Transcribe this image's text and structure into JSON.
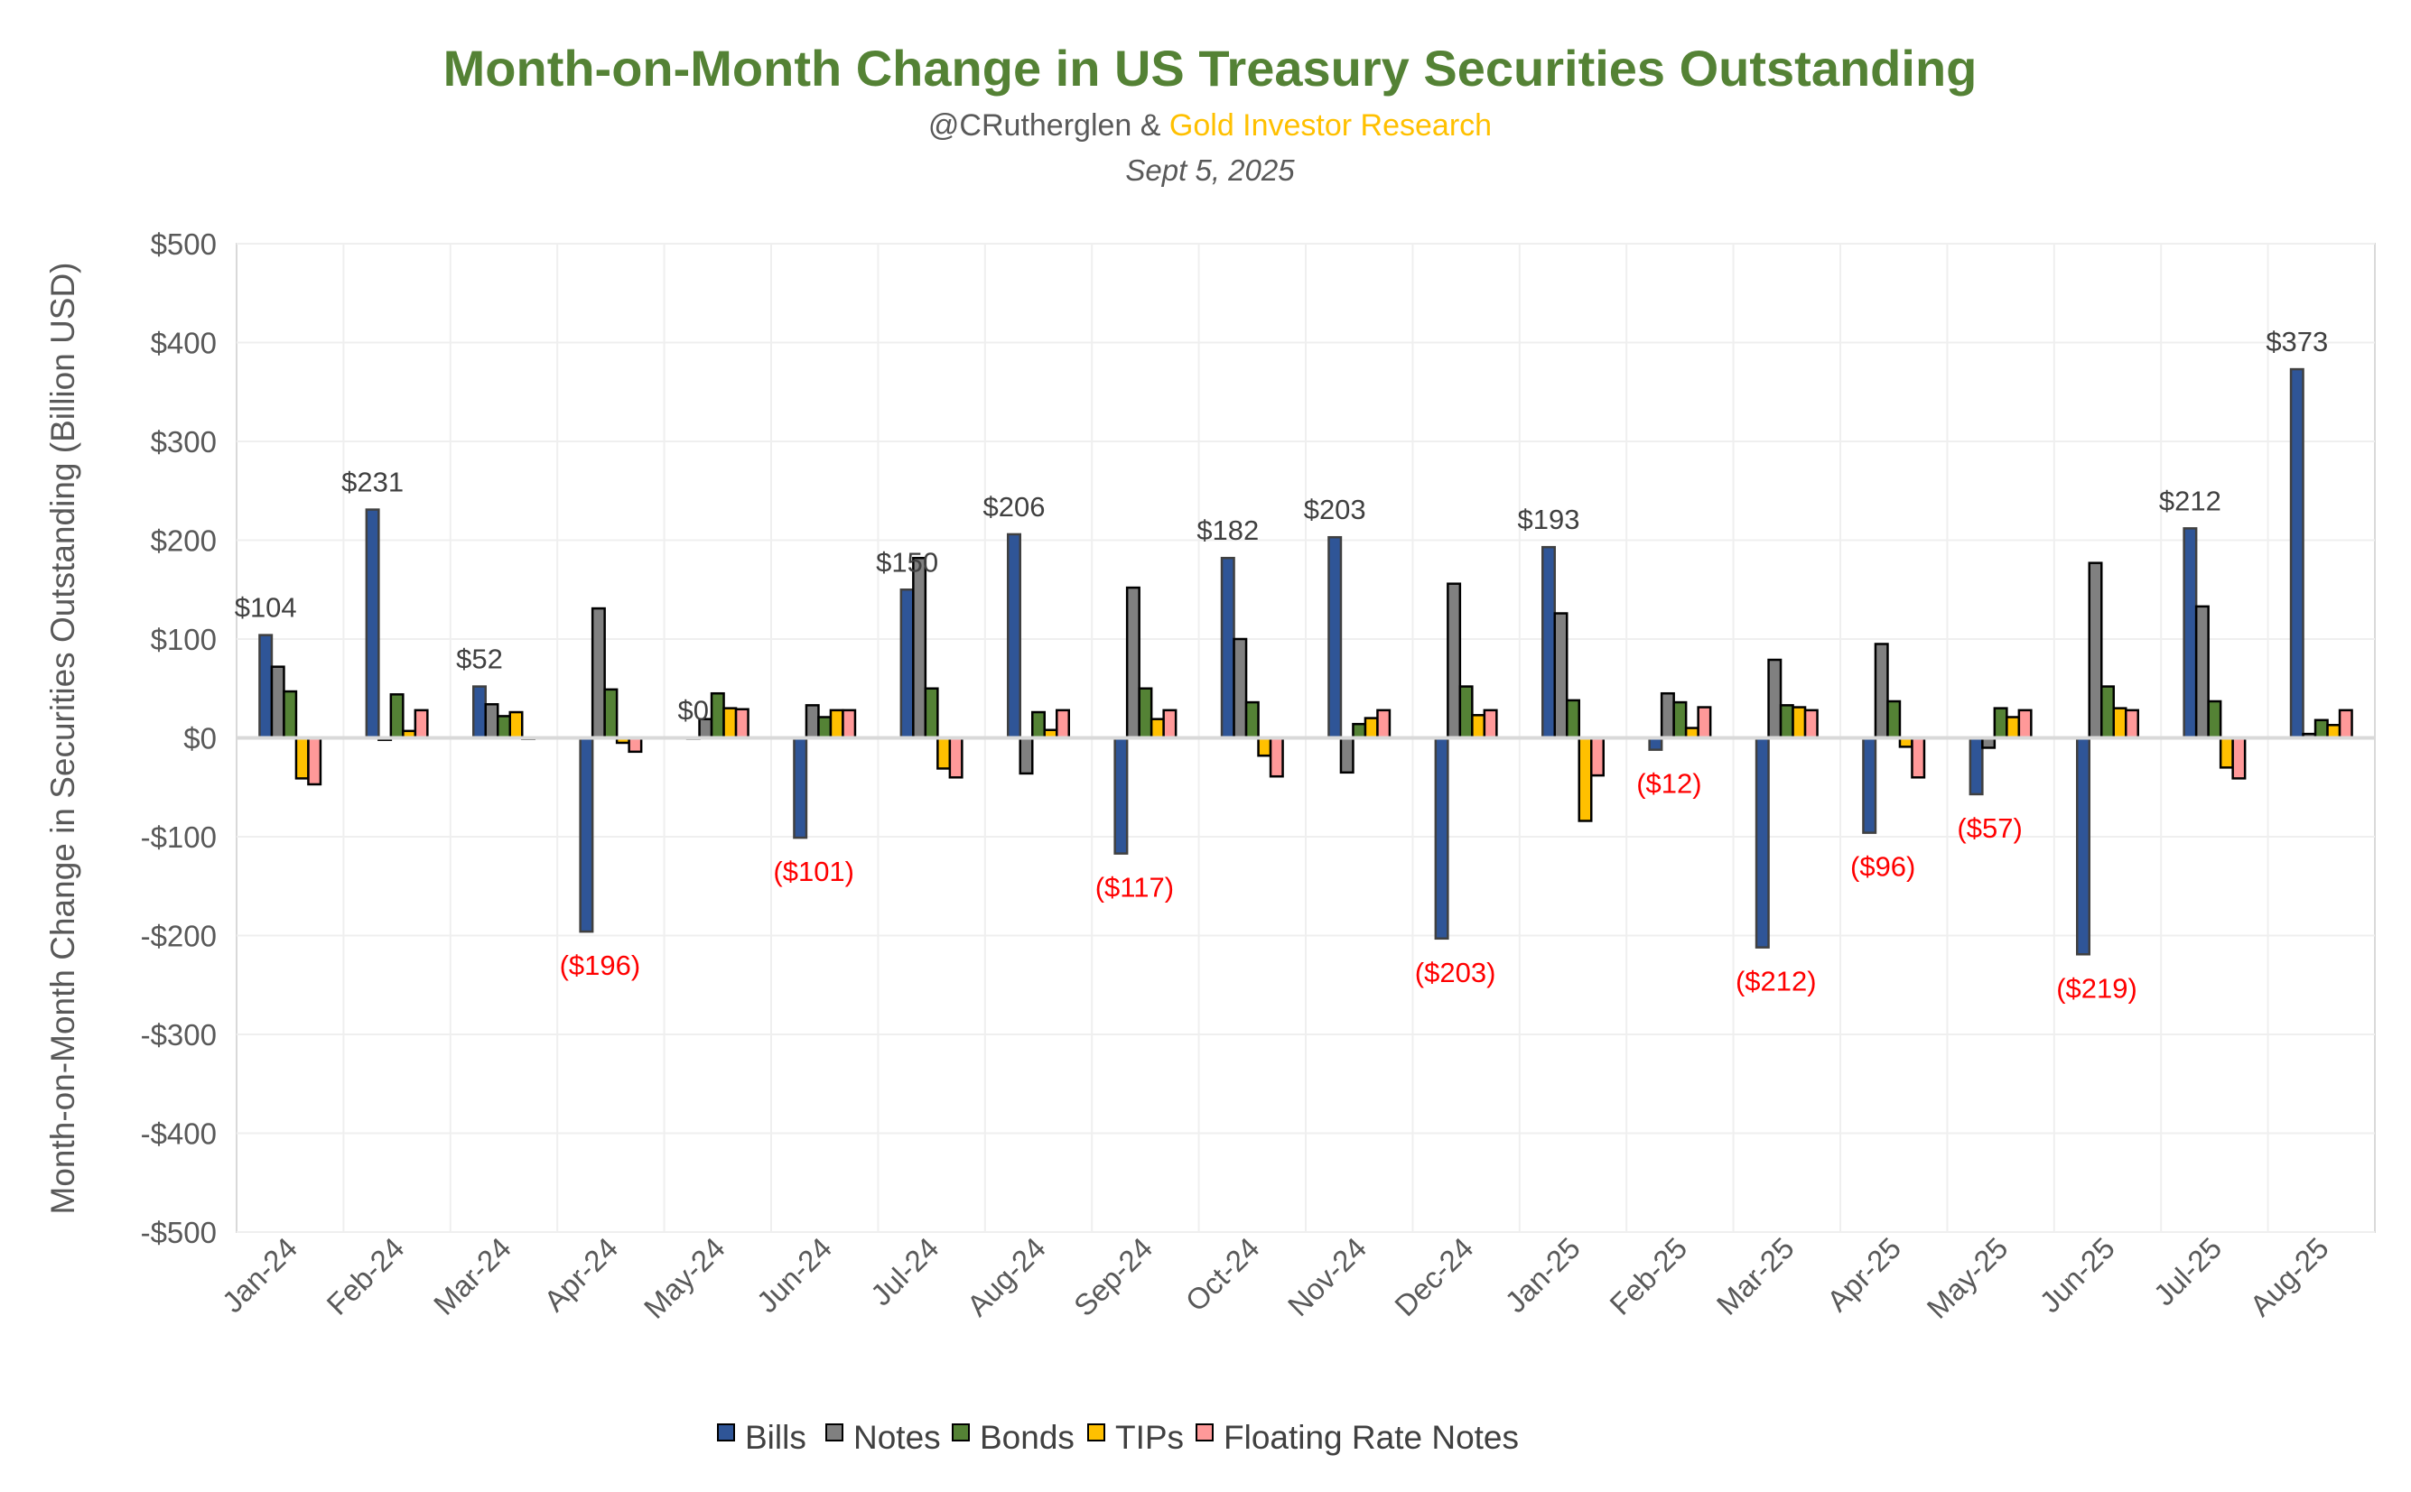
{
  "chart_data": {
    "type": "bar",
    "title": "Month-on-Month Change in US Treasury Securities Outstanding",
    "subtitle_author": "@CRutherglen &",
    "subtitle_org": "Gold Investor Research",
    "date": "Sept 5, 2025",
    "xlabel": "",
    "ylabel": "Month-on-Month Change in Securities Outstanding (Billion USD)",
    "ylim": [
      -500,
      500
    ],
    "y_ticks": [
      "$500",
      "$400",
      "$300",
      "$200",
      "$100",
      "$0",
      "-$100",
      "-$200",
      "-$300",
      "-$400",
      "-$500"
    ],
    "y_tick_values": [
      500,
      400,
      300,
      200,
      100,
      0,
      -100,
      -200,
      -300,
      -400,
      -500
    ],
    "grid": true,
    "legend_position": "bottom",
    "categories": [
      "Jan-24",
      "Feb-24",
      "Mar-24",
      "Apr-24",
      "May-24",
      "Jun-24",
      "Jul-24",
      "Aug-24",
      "Sep-24",
      "Oct-24",
      "Nov-24",
      "Dec-24",
      "Jan-25",
      "Feb-25",
      "Mar-25",
      "Apr-25",
      "May-25",
      "Jun-25",
      "Jul-25",
      "Aug-25"
    ],
    "series": [
      {
        "name": "Bills",
        "color": "#2F5597",
        "values": [
          104,
          231,
          52,
          -196,
          0,
          -101,
          150,
          206,
          -117,
          182,
          203,
          -203,
          193,
          -12,
          -212,
          -96,
          -57,
          -219,
          212,
          373
        ]
      },
      {
        "name": "Notes",
        "color": "#808080",
        "values": [
          72,
          -2,
          34,
          131,
          19,
          33,
          182,
          -36,
          152,
          100,
          -35,
          156,
          126,
          45,
          79,
          95,
          -10,
          177,
          133,
          4
        ]
      },
      {
        "name": "Bonds",
        "color": "#548235",
        "values": [
          47,
          44,
          22,
          49,
          45,
          21,
          50,
          26,
          50,
          36,
          14,
          52,
          38,
          36,
          33,
          37,
          30,
          52,
          37,
          18
        ]
      },
      {
        "name": "TIPs",
        "color": "#FFC000",
        "values": [
          -41,
          7,
          26,
          -5,
          30,
          28,
          -31,
          8,
          19,
          -18,
          20,
          23,
          -84,
          10,
          31,
          -9,
          21,
          30,
          -30,
          13
        ]
      },
      {
        "name": "Floating Rate Notes",
        "color": "#FF9999",
        "values": [
          -47,
          28,
          -1,
          -14,
          29,
          28,
          -40,
          28,
          28,
          -39,
          28,
          28,
          -38,
          31,
          28,
          -40,
          28,
          28,
          -41,
          28
        ]
      }
    ],
    "bill_labels": [
      "$104",
      "$231",
      "$52",
      "($196)",
      "$0",
      "($101)",
      "$150",
      "$206",
      "($117)",
      "$182",
      "$203",
      "($203)",
      "$193",
      "($12)",
      "($212)",
      "($96)",
      "($57)",
      "($219)",
      "$212",
      "$373"
    ],
    "positive_label_color": "#404040",
    "negative_label_color": "#FF0000"
  }
}
